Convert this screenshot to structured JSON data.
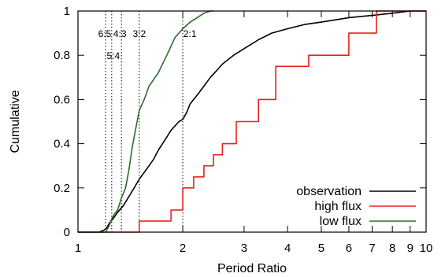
{
  "chart_data": {
    "type": "line",
    "xlabel": "Period Ratio",
    "ylabel": "Cumulative",
    "xscale": "log",
    "xlim": [
      1,
      10
    ],
    "ylim": [
      0,
      1
    ],
    "x_ticks": [
      1,
      2,
      3,
      4,
      5,
      6,
      7,
      8,
      9,
      10
    ],
    "y_ticks": [
      0,
      0.2,
      0.4,
      0.6,
      0.8,
      1
    ],
    "x_tick_labels": [
      "1",
      "2",
      "3",
      "4",
      "5",
      "6",
      "7",
      "8",
      "9",
      "10"
    ],
    "y_tick_labels": [
      "0",
      "0.2",
      "0.4",
      "0.6",
      "0.8",
      "1"
    ],
    "legend_position": "bottom-right",
    "resonances": [
      {
        "ratio": 1.2,
        "label": "6:5"
      },
      {
        "ratio": 1.25,
        "label": "5:4"
      },
      {
        "ratio": 1.333,
        "label": "4:3"
      },
      {
        "ratio": 1.5,
        "label": "3:2"
      },
      {
        "ratio": 2.0,
        "label": "2:1"
      }
    ],
    "series": [
      {
        "name": "observation",
        "color": "#000000",
        "x": [
          1.0,
          1.15,
          1.19,
          1.21,
          1.23,
          1.26,
          1.3,
          1.35,
          1.4,
          1.45,
          1.5,
          1.55,
          1.6,
          1.65,
          1.7,
          1.75,
          1.8,
          1.85,
          1.9,
          1.95,
          2.0,
          2.05,
          2.1,
          2.2,
          2.3,
          2.4,
          2.5,
          2.6,
          2.8,
          3.0,
          3.3,
          3.6,
          4.0,
          4.5,
          5.0,
          5.5,
          6.0,
          7.0,
          8.0,
          9.0,
          10.0
        ],
        "y": [
          0.0,
          0.0,
          0.01,
          0.02,
          0.04,
          0.06,
          0.09,
          0.12,
          0.16,
          0.2,
          0.24,
          0.27,
          0.3,
          0.33,
          0.37,
          0.4,
          0.43,
          0.46,
          0.48,
          0.5,
          0.51,
          0.54,
          0.58,
          0.62,
          0.66,
          0.7,
          0.73,
          0.76,
          0.8,
          0.83,
          0.87,
          0.9,
          0.92,
          0.94,
          0.95,
          0.96,
          0.97,
          0.98,
          0.99,
          1.0,
          1.0
        ]
      },
      {
        "name": "high flux",
        "color": "#e8221c",
        "step": true,
        "x": [
          1.0,
          1.5,
          1.85,
          2.0,
          2.15,
          2.3,
          2.45,
          2.6,
          2.85,
          3.3,
          3.7,
          4.6,
          6.0,
          7.2,
          10.0
        ],
        "y": [
          0.0,
          0.05,
          0.1,
          0.2,
          0.25,
          0.3,
          0.35,
          0.4,
          0.5,
          0.6,
          0.75,
          0.8,
          0.9,
          1.0,
          1.0
        ]
      },
      {
        "name": "low flux",
        "color": "#2e6b2e",
        "x": [
          1.0,
          1.2,
          1.23,
          1.25,
          1.27,
          1.3,
          1.33,
          1.37,
          1.4,
          1.43,
          1.47,
          1.5,
          1.55,
          1.6,
          1.7,
          1.8,
          1.9,
          2.0,
          2.1,
          2.2,
          2.3,
          2.4,
          2.45
        ],
        "y": [
          0.0,
          0.0,
          0.03,
          0.06,
          0.08,
          0.1,
          0.15,
          0.2,
          0.28,
          0.38,
          0.48,
          0.55,
          0.6,
          0.66,
          0.72,
          0.8,
          0.88,
          0.92,
          0.95,
          0.97,
          0.99,
          1.0,
          1.0
        ]
      }
    ]
  }
}
